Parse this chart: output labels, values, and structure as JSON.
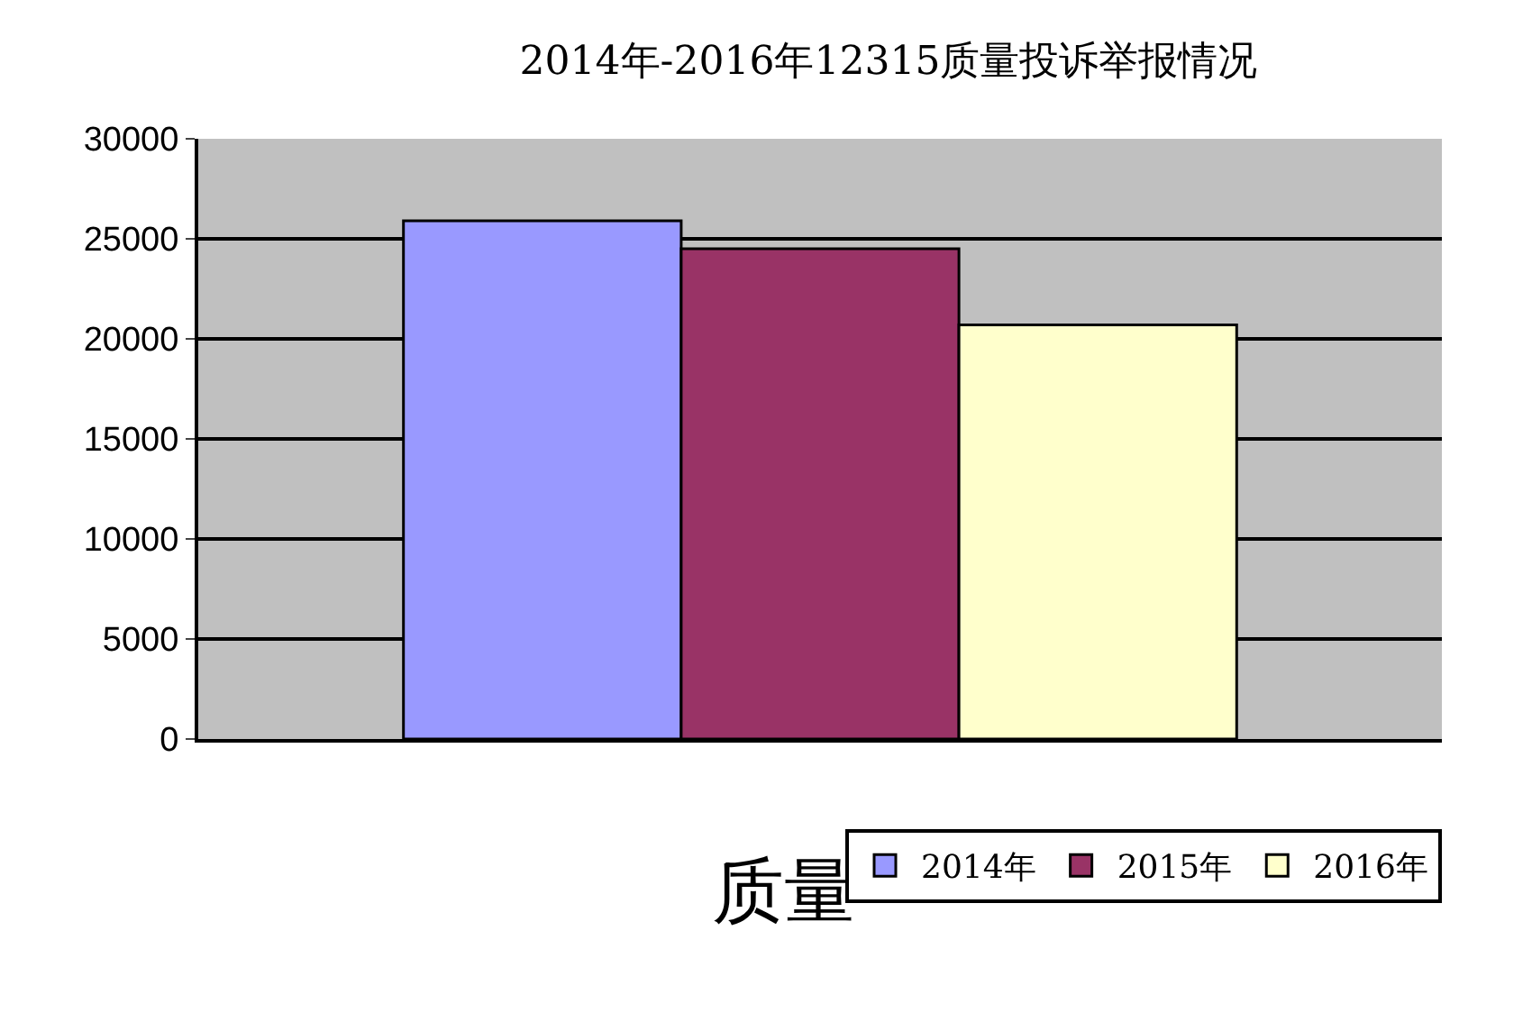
{
  "chart_data": {
    "type": "bar",
    "title": "2014年-2016年12315质量投诉举报情况",
    "categories": [
      "质量"
    ],
    "series": [
      {
        "name": "2014年",
        "color": "#9999ff",
        "values": [
          25900
        ]
      },
      {
        "name": "2015年",
        "color": "#993366",
        "values": [
          24500
        ]
      },
      {
        "name": "2016年",
        "color": "#ffffcc",
        "values": [
          20700
        ]
      }
    ],
    "ylim": [
      0,
      30000
    ],
    "yticks": [
      0,
      5000,
      10000,
      15000,
      20000,
      25000,
      30000
    ],
    "grid": "y",
    "legend": "bottom right"
  }
}
